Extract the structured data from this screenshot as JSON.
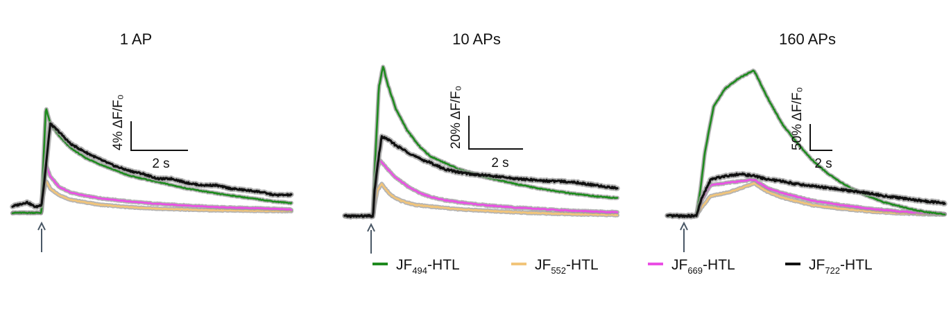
{
  "colors": {
    "JF494": "#1e8a1e",
    "JF552": "#f2c57a",
    "JF669": "#ea4fe4",
    "JF722": "#111111",
    "sem_band": "#9a9a9a",
    "arrow": "#4a5866"
  },
  "legend": [
    {
      "series": "JF494",
      "prefix": "JF",
      "sub": "494",
      "suffix": "-HTL"
    },
    {
      "series": "JF552",
      "prefix": "JF",
      "sub": "552",
      "suffix": "-HTL"
    },
    {
      "series": "JF669",
      "prefix": "JF",
      "sub": "669",
      "suffix": "-HTL"
    },
    {
      "series": "JF722",
      "prefix": "JF",
      "sub": "722",
      "suffix": "-HTL"
    }
  ],
  "chart_data": [
    {
      "type": "line",
      "title": "1 AP",
      "xlabel": "",
      "ylabel": "",
      "scale_bar": {
        "y_text": "4% ΔF/F₀",
        "y_value": 4,
        "x_text": "2 s",
        "x_value": 2
      },
      "stimulus_time_s": 0,
      "xlim": [
        -1,
        8.6
      ],
      "ylim": [
        -0.5,
        16
      ],
      "series": [
        {
          "key": "JF494",
          "baseline": 0,
          "points": [
            [
              -1,
              0
            ],
            [
              0,
              0
            ],
            [
              0.05,
              5
            ],
            [
              0.15,
              13
            ],
            [
              0.3,
              11
            ],
            [
              0.6,
              9.5
            ],
            [
              1,
              8
            ],
            [
              1.5,
              6.8
            ],
            [
              2,
              6
            ],
            [
              2.5,
              5.3
            ],
            [
              3,
              4.6
            ],
            [
              4,
              3.8
            ],
            [
              5,
              3
            ],
            [
              6,
              2.4
            ],
            [
              7,
              1.9
            ],
            [
              8,
              1.4
            ],
            [
              8.6,
              1.2
            ]
          ]
        },
        {
          "key": "JF552",
          "baseline": 0,
          "points": [
            [
              -1,
              0
            ],
            [
              0,
              0
            ],
            [
              0.05,
              2
            ],
            [
              0.15,
              4
            ],
            [
              0.3,
              3
            ],
            [
              0.6,
              2.2
            ],
            [
              1,
              1.6
            ],
            [
              2,
              1.0
            ],
            [
              3,
              0.7
            ],
            [
              4,
              0.5
            ],
            [
              6,
              0.3
            ],
            [
              8.6,
              0.2
            ]
          ]
        },
        {
          "key": "JF669",
          "baseline": 0,
          "points": [
            [
              -1,
              0
            ],
            [
              0,
              0
            ],
            [
              0.05,
              3
            ],
            [
              0.15,
              6
            ],
            [
              0.3,
              4.5
            ],
            [
              0.6,
              3.2
            ],
            [
              1,
              2.5
            ],
            [
              1.5,
              2.1
            ],
            [
              2,
              1.8
            ],
            [
              3,
              1.4
            ],
            [
              4,
              1.1
            ],
            [
              5,
              0.9
            ],
            [
              6,
              0.7
            ],
            [
              7,
              0.6
            ],
            [
              8,
              0.5
            ],
            [
              8.6,
              0.4
            ]
          ]
        },
        {
          "key": "JF722",
          "baseline": 0.6,
          "points": [
            [
              -1,
              0.8
            ],
            [
              -0.5,
              1.3
            ],
            [
              -0.2,
              0.7
            ],
            [
              0,
              1.0
            ],
            [
              0.1,
              4
            ],
            [
              0.3,
              11
            ],
            [
              0.6,
              10
            ],
            [
              1,
              8.5
            ],
            [
              1.5,
              7.5
            ],
            [
              2,
              6.6
            ],
            [
              2.5,
              5.8
            ],
            [
              3,
              5.2
            ],
            [
              3.5,
              4.8
            ],
            [
              4,
              4.2
            ],
            [
              4.5,
              4.2
            ],
            [
              5,
              3.7
            ],
            [
              5.5,
              3.4
            ],
            [
              6,
              3.4
            ],
            [
              6.5,
              3.0
            ],
            [
              7,
              2.8
            ],
            [
              7.5,
              2.6
            ],
            [
              8,
              2.2
            ],
            [
              8.6,
              2.2
            ]
          ]
        }
      ]
    },
    {
      "type": "line",
      "title": "10 APs",
      "xlabel": "",
      "ylabel": "",
      "scale_bar": {
        "y_text": "20% ΔF/F₀",
        "y_value": 20,
        "x_text": "2 s",
        "x_value": 2
      },
      "stimulus_time_s": 0,
      "xlim": [
        -1,
        8.6
      ],
      "ylim": [
        -1,
        75
      ],
      "series": [
        {
          "key": "JF494",
          "baseline": 0,
          "points": [
            [
              -1,
              0
            ],
            [
              0,
              0
            ],
            [
              0.05,
              20
            ],
            [
              0.2,
              60
            ],
            [
              0.35,
              70
            ],
            [
              0.5,
              62
            ],
            [
              0.8,
              50
            ],
            [
              1.2,
              40
            ],
            [
              1.6,
              33
            ],
            [
              2,
              28
            ],
            [
              2.5,
              25
            ],
            [
              3,
              22
            ],
            [
              3.5,
              20
            ],
            [
              4,
              18
            ],
            [
              5,
              15
            ],
            [
              6,
              12.5
            ],
            [
              7,
              10.5
            ],
            [
              8,
              9
            ],
            [
              8.6,
              8.5
            ]
          ]
        },
        {
          "key": "JF552",
          "baseline": 0,
          "points": [
            [
              -1,
              0
            ],
            [
              0,
              0
            ],
            [
              0.05,
              5
            ],
            [
              0.15,
              12
            ],
            [
              0.3,
              15
            ],
            [
              0.6,
              10
            ],
            [
              1,
              7
            ],
            [
              1.5,
              5.2
            ],
            [
              2,
              4.5
            ],
            [
              3,
              3.2
            ],
            [
              4,
              2.5
            ],
            [
              5,
              1.8
            ],
            [
              6,
              1.3
            ],
            [
              7,
              0.9
            ],
            [
              8,
              0.7
            ],
            [
              8.6,
              0.5
            ]
          ]
        },
        {
          "key": "JF669",
          "baseline": 0,
          "points": [
            [
              -1,
              0
            ],
            [
              0,
              0
            ],
            [
              0.05,
              10
            ],
            [
              0.15,
              22
            ],
            [
              0.25,
              26
            ],
            [
              0.5,
              22
            ],
            [
              0.8,
              18
            ],
            [
              1.2,
              14
            ],
            [
              1.6,
              11
            ],
            [
              2,
              9
            ],
            [
              2.5,
              7.5
            ],
            [
              3,
              6.5
            ],
            [
              4,
              5
            ],
            [
              5,
              4
            ],
            [
              6,
              3.2
            ],
            [
              7,
              2.5
            ],
            [
              8,
              2.0
            ],
            [
              8.6,
              1.8
            ]
          ]
        },
        {
          "key": "JF722",
          "baseline": 0.2,
          "points": [
            [
              -1,
              0
            ],
            [
              0,
              0
            ],
            [
              0.05,
              12
            ],
            [
              0.2,
              28
            ],
            [
              0.3,
              37
            ],
            [
              0.5,
              36
            ],
            [
              0.8,
              33
            ],
            [
              1.2,
              30
            ],
            [
              1.6,
              27
            ],
            [
              2,
              25
            ],
            [
              2.5,
              22
            ],
            [
              3,
              20.5
            ],
            [
              3.5,
              19.5
            ],
            [
              4,
              19
            ],
            [
              5,
              17.5
            ],
            [
              6,
              16.5
            ],
            [
              7,
              16
            ],
            [
              8,
              14
            ],
            [
              8.6,
              13
            ]
          ]
        }
      ]
    },
    {
      "type": "line",
      "title": "160 APs",
      "xlabel": "",
      "ylabel": "",
      "scale_bar": {
        "y_text": "50% ΔF/F₀",
        "y_value": 50,
        "x_text": "2 s",
        "x_value": 2
      },
      "stimulus_time_s": 0,
      "xlim": [
        -1,
        8.6
      ],
      "ylim": [
        -1,
        175
      ],
      "series": [
        {
          "key": "JF494",
          "baseline": 0,
          "points": [
            [
              -1,
              0
            ],
            [
              0,
              0
            ],
            [
              0.15,
              30
            ],
            [
              0.3,
              70
            ],
            [
              0.6,
              120
            ],
            [
              1,
              140
            ],
            [
              1.5,
              152
            ],
            [
              2,
              160
            ],
            [
              2.5,
              128
            ],
            [
              3,
              100
            ],
            [
              3.5,
              80
            ],
            [
              4,
              62
            ],
            [
              4.5,
              48
            ],
            [
              5,
              37
            ],
            [
              5.5,
              28
            ],
            [
              6,
              21
            ],
            [
              6.5,
              15
            ],
            [
              7,
              11
            ],
            [
              7.5,
              7
            ],
            [
              8,
              4
            ],
            [
              8.6,
              2
            ]
          ]
        },
        {
          "key": "JF552",
          "baseline": 0,
          "points": [
            [
              -1,
              0
            ],
            [
              0,
              0
            ],
            [
              0.2,
              10
            ],
            [
              0.5,
              22
            ],
            [
              1,
              25
            ],
            [
              1.5,
              30
            ],
            [
              2,
              36
            ],
            [
              2.5,
              26
            ],
            [
              3,
              20
            ],
            [
              4,
              12
            ],
            [
              5,
              8
            ],
            [
              6,
              5
            ],
            [
              7,
              3
            ],
            [
              8,
              2
            ],
            [
              8.6,
              1.5
            ]
          ]
        },
        {
          "key": "JF669",
          "baseline": 0,
          "points": [
            [
              -1,
              0
            ],
            [
              0,
              0
            ],
            [
              0.2,
              18
            ],
            [
              0.5,
              34
            ],
            [
              1,
              36
            ],
            [
              1.5,
              38
            ],
            [
              2,
              40
            ],
            [
              2.5,
              30
            ],
            [
              3,
              25
            ],
            [
              4,
              17
            ],
            [
              5,
              12
            ],
            [
              6,
              8
            ],
            [
              7,
              5
            ],
            [
              8,
              3
            ],
            [
              8.6,
              2.5
            ]
          ]
        },
        {
          "key": "JF722",
          "baseline": 0,
          "points": [
            [
              -1,
              0
            ],
            [
              0,
              0
            ],
            [
              0.2,
              20
            ],
            [
              0.5,
              40
            ],
            [
              1,
              44
            ],
            [
              1.5,
              46
            ],
            [
              2,
              44
            ],
            [
              2.5,
              40
            ],
            [
              3,
              38
            ],
            [
              3.5,
              35
            ],
            [
              4,
              33
            ],
            [
              4.5,
              31
            ],
            [
              5,
              29
            ],
            [
              5.5,
              27
            ],
            [
              6,
              25
            ],
            [
              6.5,
              22
            ],
            [
              7,
              20
            ],
            [
              7.5,
              18
            ],
            [
              8,
              16
            ],
            [
              8.6,
              14
            ]
          ]
        }
      ]
    }
  ]
}
